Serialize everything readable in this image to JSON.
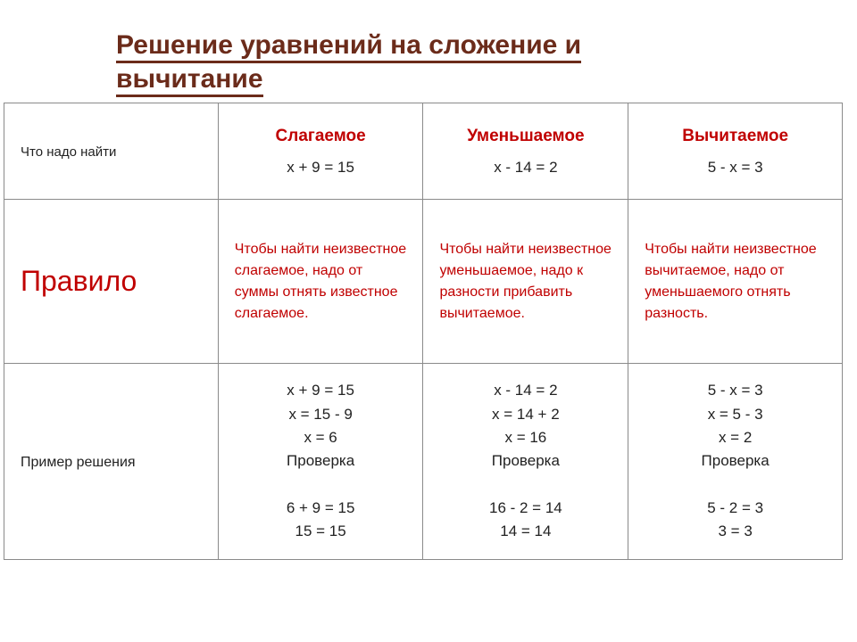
{
  "title_line1": "Решение уравнений на сложение и",
  "title_line2": "вычитание",
  "header": {
    "find_label": "Что надо найти",
    "cols": [
      {
        "term": "Слагаемое",
        "eq": "x + 9 = 15"
      },
      {
        "term": "Уменьшаемое",
        "eq": "x - 14 = 2"
      },
      {
        "term": "Вычитаемое",
        "eq": "5 - x = 3"
      }
    ]
  },
  "rule": {
    "label": "Правило",
    "texts": [
      "Чтобы найти неизвестное слагаемое, надо от суммы отнять известное слагаемое.",
      "Чтобы найти неизвестное уменьшаемое, надо к разности прибавить вычитаемое.",
      "Чтобы найти неизвестное вычитаемое, надо от уменьшаемого отнять разность."
    ]
  },
  "example": {
    "label": "Пример решения",
    "sets": [
      {
        "lines": [
          "x + 9 = 15",
          "x = 15 - 9",
          "x = 6",
          "Проверка",
          "",
          "6 + 9 = 15",
          "15 = 15"
        ]
      },
      {
        "lines": [
          "x - 14 = 2",
          "x = 14 + 2",
          "x = 16",
          "Проверка",
          "",
          "16 - 2 = 14",
          "14 = 14"
        ]
      },
      {
        "lines": [
          "5 - x = 3",
          "x = 5 - 3",
          "x = 2",
          "Проверка",
          "",
          "5 - 2 = 3",
          "3 = 3"
        ]
      }
    ]
  },
  "colors": {
    "title": "#6b2b1a",
    "accent": "#c00000",
    "border": "#8a8a8a",
    "text": "#222222",
    "background": "#ffffff"
  }
}
